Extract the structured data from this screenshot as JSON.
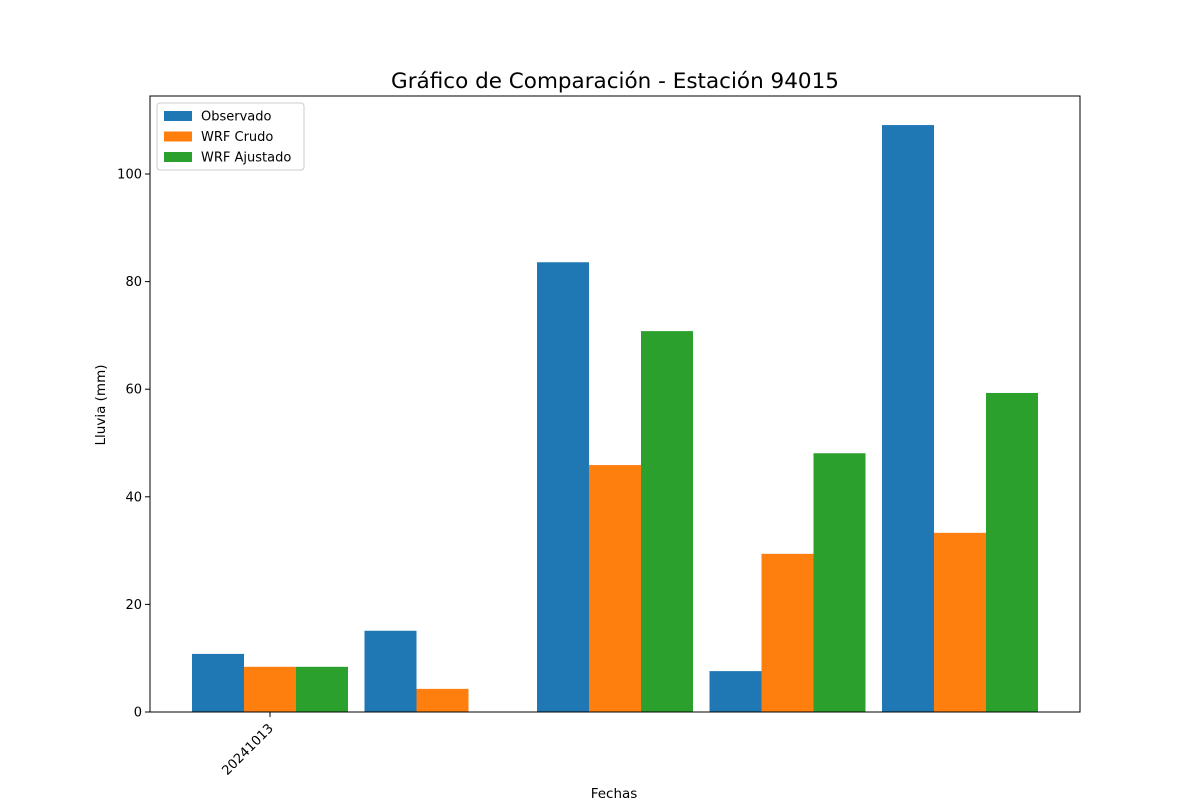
{
  "chart_data": {
    "type": "bar",
    "title": "Gráfico de Comparación - Estación 94015",
    "xlabel": "Fechas",
    "ylabel": "Lluvia (mm)",
    "ylim": [
      0,
      114.5
    ],
    "yticks": [
      0,
      20,
      40,
      60,
      80,
      100
    ],
    "categories": [
      "20241013",
      "",
      "",
      "",
      ""
    ],
    "series": [
      {
        "name": "Observado",
        "color": "#1f77b4",
        "values": [
          10.8,
          15.1,
          83.6,
          7.6,
          109.1
        ]
      },
      {
        "name": "WRF Crudo",
        "color": "#ff7f0e",
        "values": [
          8.4,
          4.3,
          45.9,
          29.4,
          33.3
        ]
      },
      {
        "name": "WRF Ajustado",
        "color": "#2ca02c",
        "values": [
          8.4,
          0,
          70.8,
          48.1,
          59.3
        ]
      }
    ],
    "legend_position": "top-left",
    "grid": false
  }
}
